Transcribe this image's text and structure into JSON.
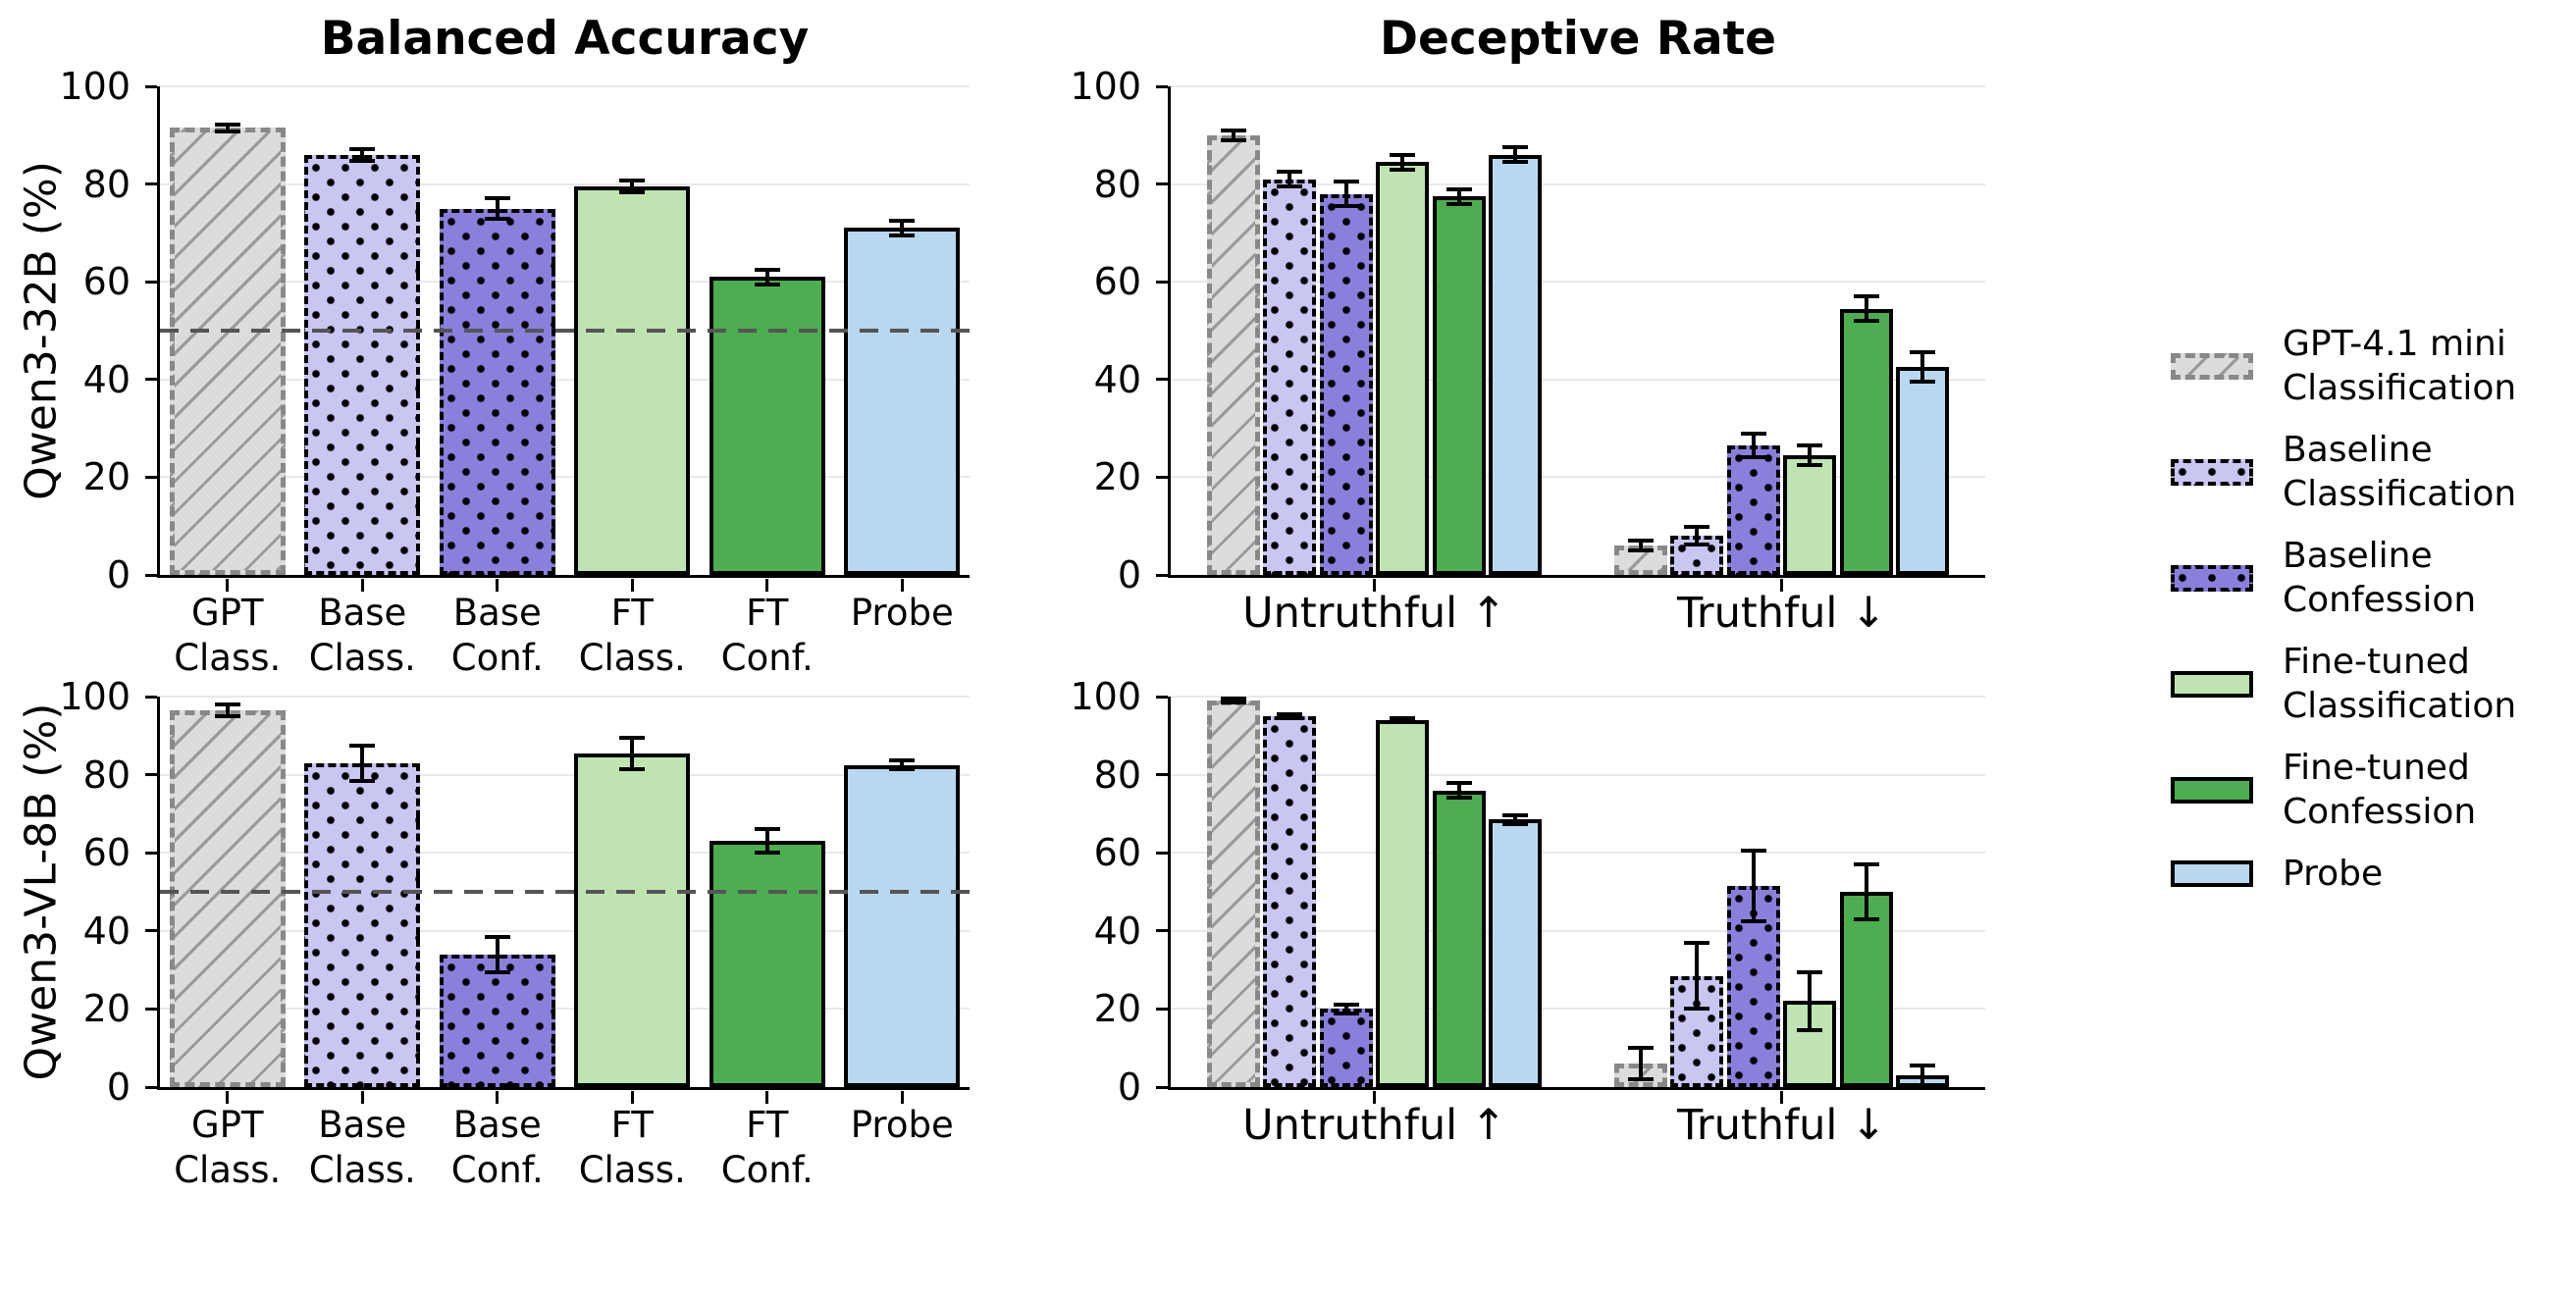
{
  "figure": {
    "background": "#ffffff",
    "grid_color": "#e9e9e9",
    "reference_line_color": "#555555",
    "error_bar_color": "#000000"
  },
  "styles": {
    "gpt": {
      "fill": "#dcdcdc",
      "pattern": "hatch",
      "hatch_color": "#999999",
      "border_color": "#888888",
      "border_style": "dashed",
      "border_width": 5
    },
    "base_class": {
      "fill": "#c9c6f2",
      "pattern": "dots",
      "dot_color": "#000000",
      "border_color": "#000000",
      "border_style": "dashed",
      "border_width": 4
    },
    "base_conf": {
      "fill": "#8a80dc",
      "pattern": "dots",
      "dot_color": "#000000",
      "border_color": "#000000",
      "border_style": "dashed",
      "border_width": 4
    },
    "ft_class": {
      "fill": "#bfe4b1",
      "pattern": "none",
      "border_color": "#000000",
      "border_style": "solid",
      "border_width": 4
    },
    "ft_conf": {
      "fill": "#4cae50",
      "pattern": "none",
      "border_color": "#000000",
      "border_style": "solid",
      "border_width": 4
    },
    "probe": {
      "fill": "#b9d8f0",
      "pattern": "none",
      "border_color": "#000000",
      "border_style": "solid",
      "border_width": 4
    }
  },
  "legend": {
    "items": [
      {
        "label": "GPT-4.1 mini\nClassification",
        "style": "gpt"
      },
      {
        "label": "Baseline\nClassification",
        "style": "base_class"
      },
      {
        "label": "Baseline\nConfession",
        "style": "base_conf"
      },
      {
        "label": "Fine-tuned\nClassification",
        "style": "ft_class"
      },
      {
        "label": "Fine-tuned\nConfession",
        "style": "ft_conf"
      },
      {
        "label": "Probe",
        "style": "probe"
      }
    ]
  },
  "chart_data": [
    {
      "id": "tl",
      "type": "bar",
      "title": "Balanced Accuracy",
      "ylabel": "Qwen3-32B (%)",
      "ylim": [
        0,
        100
      ],
      "yticks": [
        0,
        20,
        40,
        60,
        80,
        100
      ],
      "ref_line": 50,
      "grid": true,
      "categories": [
        [
          "GPT",
          "Class."
        ],
        [
          "Base",
          "Class."
        ],
        [
          "Base",
          "Conf."
        ],
        [
          "FT",
          "Class."
        ],
        [
          "FT",
          "Conf."
        ],
        [
          "Probe"
        ]
      ],
      "bars": [
        {
          "style": "gpt",
          "value": 91.5,
          "error": 0.7
        },
        {
          "style": "base_class",
          "value": 86.0,
          "error": 1.2
        },
        {
          "style": "base_conf",
          "value": 75.0,
          "error": 2.2
        },
        {
          "style": "ft_class",
          "value": 79.5,
          "error": 1.2
        },
        {
          "style": "ft_conf",
          "value": 61.0,
          "error": 1.5
        },
        {
          "style": "probe",
          "value": 71.0,
          "error": 1.5
        }
      ]
    },
    {
      "id": "tr",
      "type": "grouped-bar",
      "title": "Deceptive Rate",
      "ylim": [
        0,
        100
      ],
      "yticks": [
        0,
        20,
        40,
        60,
        80,
        100
      ],
      "grid": true,
      "categories": [
        "Untruthful ↑",
        "Truthful ↓"
      ],
      "series": [
        {
          "name": "GPT-4.1 mini Classification",
          "style": "gpt",
          "values": [
            90.0,
            6.0
          ],
          "errors": [
            1.0,
            1.0
          ]
        },
        {
          "name": "Baseline Classification",
          "style": "base_class",
          "values": [
            81.0,
            8.0
          ],
          "errors": [
            1.5,
            1.8
          ]
        },
        {
          "name": "Baseline Confession",
          "style": "base_conf",
          "values": [
            78.0,
            26.5
          ],
          "errors": [
            2.5,
            2.5
          ]
        },
        {
          "name": "Fine-tuned Classification",
          "style": "ft_class",
          "values": [
            84.5,
            24.5
          ],
          "errors": [
            1.5,
            2.0
          ]
        },
        {
          "name": "Fine-tuned Confession",
          "style": "ft_conf",
          "values": [
            77.5,
            54.5
          ],
          "errors": [
            1.5,
            2.5
          ]
        },
        {
          "name": "Probe",
          "style": "probe",
          "values": [
            86.0,
            42.5
          ],
          "errors": [
            1.5,
            3.0
          ]
        }
      ]
    },
    {
      "id": "bl",
      "type": "bar",
      "title": "",
      "ylabel": "Qwen3-VL-8B (%)",
      "ylim": [
        0,
        100
      ],
      "yticks": [
        0,
        20,
        40,
        60,
        80,
        100
      ],
      "ref_line": 50,
      "grid": true,
      "categories": [
        [
          "GPT",
          "Class."
        ],
        [
          "Base",
          "Class."
        ],
        [
          "Base",
          "Conf."
        ],
        [
          "FT",
          "Class."
        ],
        [
          "FT",
          "Conf."
        ],
        [
          "Probe"
        ]
      ],
      "bars": [
        {
          "style": "gpt",
          "value": 96.5,
          "error": 1.5
        },
        {
          "style": "base_class",
          "value": 83.0,
          "error": 4.5
        },
        {
          "style": "base_conf",
          "value": 34.0,
          "error": 4.5
        },
        {
          "style": "ft_class",
          "value": 85.5,
          "error": 4.0
        },
        {
          "style": "ft_conf",
          "value": 63.0,
          "error": 3.0
        },
        {
          "style": "probe",
          "value": 82.5,
          "error": 1.2
        }
      ]
    },
    {
      "id": "br",
      "type": "grouped-bar",
      "title": "",
      "ylim": [
        0,
        100
      ],
      "yticks": [
        0,
        20,
        40,
        60,
        80,
        100
      ],
      "grid": true,
      "categories": [
        "Untruthful ↑",
        "Truthful ↓"
      ],
      "series": [
        {
          "name": "GPT-4.1 mini Classification",
          "style": "gpt",
          "values": [
            99.0,
            6.0
          ],
          "errors": [
            0.4,
            4.0
          ]
        },
        {
          "name": "Baseline Classification",
          "style": "base_class",
          "values": [
            95.0,
            28.5
          ],
          "errors": [
            0.6,
            8.5
          ]
        },
        {
          "name": "Baseline Confession",
          "style": "base_conf",
          "values": [
            20.0,
            51.5
          ],
          "errors": [
            1.2,
            9.0
          ]
        },
        {
          "name": "Fine-tuned Classification",
          "style": "ft_class",
          "values": [
            94.0,
            22.0
          ],
          "errors": [
            0.5,
            7.5
          ]
        },
        {
          "name": "Fine-tuned Confession",
          "style": "ft_conf",
          "values": [
            76.0,
            50.0
          ],
          "errors": [
            1.8,
            7.0
          ]
        },
        {
          "name": "Probe",
          "style": "probe",
          "values": [
            68.5,
            3.0
          ],
          "errors": [
            1.2,
            2.5
          ]
        }
      ]
    }
  ]
}
